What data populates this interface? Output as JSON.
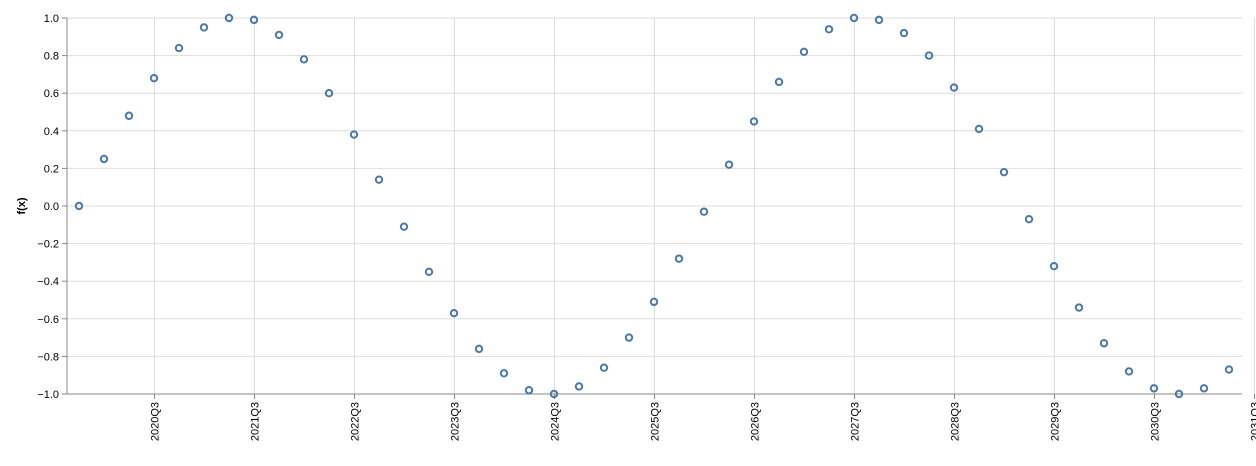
{
  "chart_data": {
    "type": "scatter",
    "title": "",
    "xlabel": "",
    "ylabel": "f(x)",
    "ylim": [
      -1.0,
      1.0
    ],
    "yticks": [
      "1.0",
      "0.8",
      "0.6",
      "0.4",
      "0.2",
      "0.0",
      "−0.2",
      "−0.4",
      "−0.6",
      "−0.8",
      "−1.0"
    ],
    "ytick_values": [
      1.0,
      0.8,
      0.6,
      0.4,
      0.2,
      0.0,
      -0.2,
      -0.4,
      -0.6,
      -0.8,
      -1.0
    ],
    "xticks": [
      "2020Q3",
      "2021Q3",
      "2022Q3",
      "2023Q3",
      "2024Q3",
      "2025Q3",
      "2026Q3",
      "2027Q3",
      "2028Q3",
      "2029Q3",
      "2030Q3",
      "2031Q3"
    ],
    "grid": true,
    "marker_color": "#4c78a8",
    "x": [
      "2019Q4",
      "2020Q1",
      "2020Q2",
      "2020Q3",
      "2020Q4",
      "2021Q1",
      "2021Q2",
      "2021Q3",
      "2021Q4",
      "2022Q1",
      "2022Q2",
      "2022Q3",
      "2022Q4",
      "2023Q1",
      "2023Q2",
      "2023Q3",
      "2023Q4",
      "2024Q1",
      "2024Q2",
      "2024Q3",
      "2024Q4",
      "2025Q1",
      "2025Q2",
      "2025Q3",
      "2025Q4",
      "2026Q1",
      "2026Q2",
      "2026Q3",
      "2026Q4",
      "2027Q1",
      "2027Q2",
      "2027Q3",
      "2027Q4",
      "2028Q1",
      "2028Q2",
      "2028Q3",
      "2028Q4",
      "2029Q1",
      "2029Q2",
      "2029Q3",
      "2029Q4",
      "2030Q1",
      "2030Q2",
      "2030Q3",
      "2030Q4",
      "2031Q1",
      "2031Q2"
    ],
    "y": [
      0.0,
      0.25,
      0.48,
      0.68,
      0.84,
      0.95,
      1.0,
      0.99,
      0.91,
      0.78,
      0.6,
      0.38,
      0.14,
      -0.11,
      -0.35,
      -0.57,
      -0.76,
      -0.89,
      -0.98,
      -1.0,
      -0.96,
      -0.86,
      -0.7,
      -0.51,
      -0.28,
      -0.03,
      0.22,
      0.45,
      0.66,
      0.82,
      0.94,
      1.0,
      0.99,
      0.92,
      0.8,
      0.63,
      0.41,
      0.18,
      -0.07,
      -0.32,
      -0.54,
      -0.73,
      -0.88,
      -0.97,
      -1.0,
      -0.97,
      -0.87
    ]
  }
}
